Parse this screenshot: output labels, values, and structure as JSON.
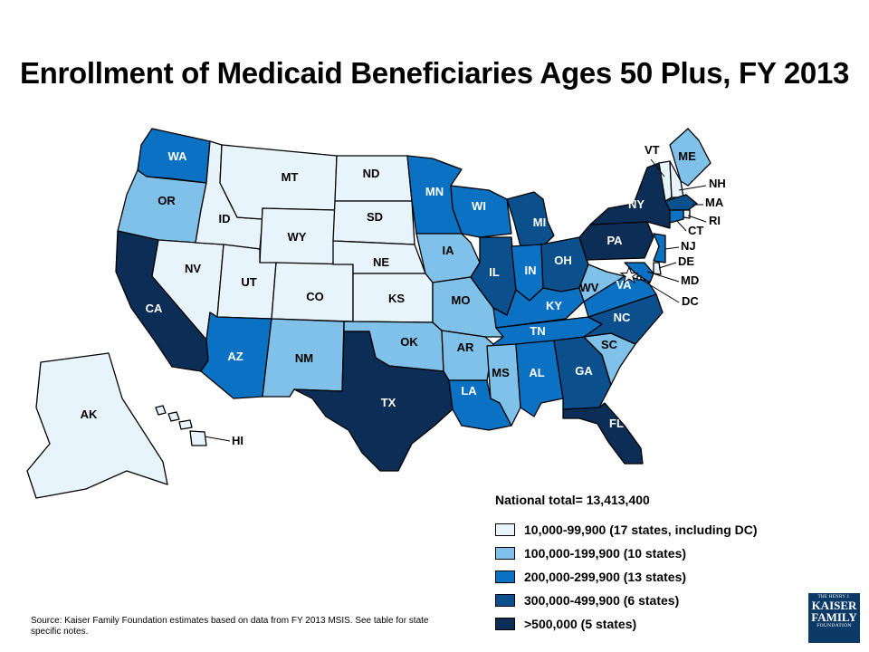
{
  "title": "Enrollment of Medicaid Beneficiaries Ages 50 Plus, FY 2013",
  "national_total": "National total= 13,413,400",
  "legend": [
    {
      "label": "10,000-99,900 (17 states, including DC)",
      "color": "#e8f4fb"
    },
    {
      "label": "100,000-199,900 (10 states)",
      "color": "#7fc1e9"
    },
    {
      "label": "200,000-299,900 (13 states)",
      "color": "#0b71c2"
    },
    {
      "label": "300,000-499,900 (6 states)",
      "color": "#0b508c"
    },
    {
      "label": ">500,000 (5 states)",
      "color": "#0c2d55"
    }
  ],
  "states": {
    "WA": 2,
    "OR": 1,
    "CA": 4,
    "NV": 0,
    "ID": 0,
    "MT": 0,
    "WY": 0,
    "UT": 0,
    "AZ": 2,
    "CO": 0,
    "NM": 1,
    "ND": 0,
    "SD": 0,
    "NE": 0,
    "KS": 0,
    "OK": 1,
    "TX": 4,
    "MN": 2,
    "IA": 1,
    "MO": 1,
    "AR": 1,
    "LA": 2,
    "WI": 2,
    "IL": 3,
    "MI": 3,
    "IN": 2,
    "OH": 3,
    "KY": 2,
    "TN": 2,
    "MS": 1,
    "AL": 2,
    "GA": 3,
    "FL": 4,
    "SC": 1,
    "NC": 3,
    "VA": 2,
    "WV": 1,
    "PA": 4,
    "NY": 4,
    "ME": 1,
    "VT": 0,
    "NH": 0,
    "MA": 3,
    "RI": 0,
    "CT": 2,
    "NJ": 2,
    "DE": 0,
    "MD": 2,
    "DC": 0,
    "AK": 0,
    "HI": 0
  },
  "callouts": [
    "VT",
    "NH",
    "MA",
    "RI",
    "CT",
    "NJ",
    "DE",
    "MD",
    "DC",
    "HI"
  ],
  "source": "Source: Kaiser Family Foundation estimates based on data from FY 2013 MSIS. See table for state specific notes.",
  "logo": {
    "line1": "THE HENRY J.",
    "line2": "KAISER",
    "line3": "FAMILY",
    "line4": "FOUNDATION"
  }
}
